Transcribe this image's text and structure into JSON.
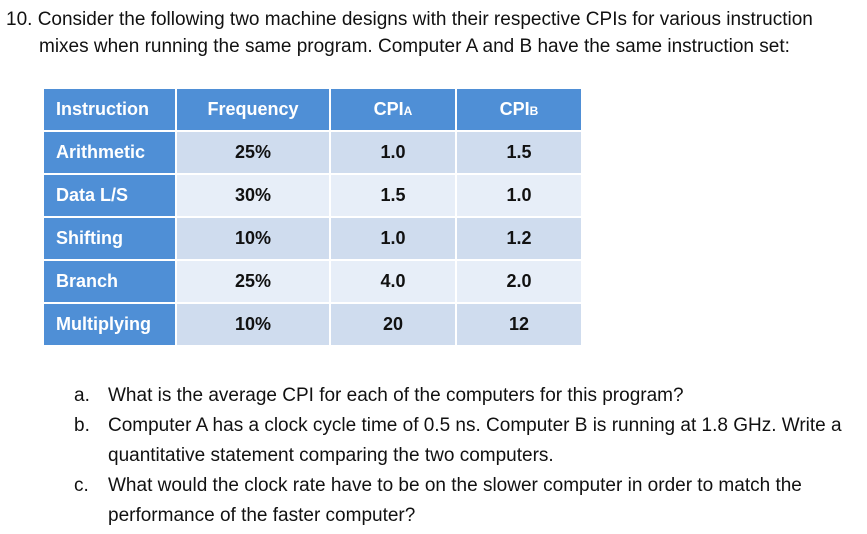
{
  "question": {
    "number": "10.",
    "line1": "Consider the following two machine designs with their respective CPIs for various instruction",
    "line2": "mixes when running the same program. Computer A and B have the same instruction set:"
  },
  "table": {
    "headers": {
      "instruction": "Instruction",
      "frequency": "Frequency",
      "cpi_a_main": "CPI",
      "cpi_a_sub": "A",
      "cpi_b_main": "CPI",
      "cpi_b_sub": "B"
    },
    "rows": [
      {
        "instruction": "Arithmetic",
        "frequency": "25%",
        "cpi_a": "1.0",
        "cpi_b": "1.5"
      },
      {
        "instruction": "Data L/S",
        "frequency": "30%",
        "cpi_a": "1.5",
        "cpi_b": "1.0"
      },
      {
        "instruction": "Shifting",
        "frequency": "10%",
        "cpi_a": "1.0",
        "cpi_b": "1.2"
      },
      {
        "instruction": "Branch",
        "frequency": "25%",
        "cpi_a": "4.0",
        "cpi_b": "2.0"
      },
      {
        "instruction": "Multiplying",
        "frequency": "10%",
        "cpi_a": "20",
        "cpi_b": "12"
      }
    ]
  },
  "subquestions": [
    {
      "marker": "a.",
      "text": "What is the average CPI for each of the computers for this program?"
    },
    {
      "marker": "b.",
      "text": "Computer A has a clock cycle time of 0.5 ns. Computer B is running at 1.8 GHz. Write a quantitative statement comparing the two computers."
    },
    {
      "marker": "c.",
      "text": "What would the clock rate have to be on the slower computer in order to match the performance of the  faster computer?"
    }
  ],
  "colors": {
    "header_blue": "#4f8fd6",
    "row_dark": "#cfdcee",
    "row_light": "#e7eef8"
  }
}
